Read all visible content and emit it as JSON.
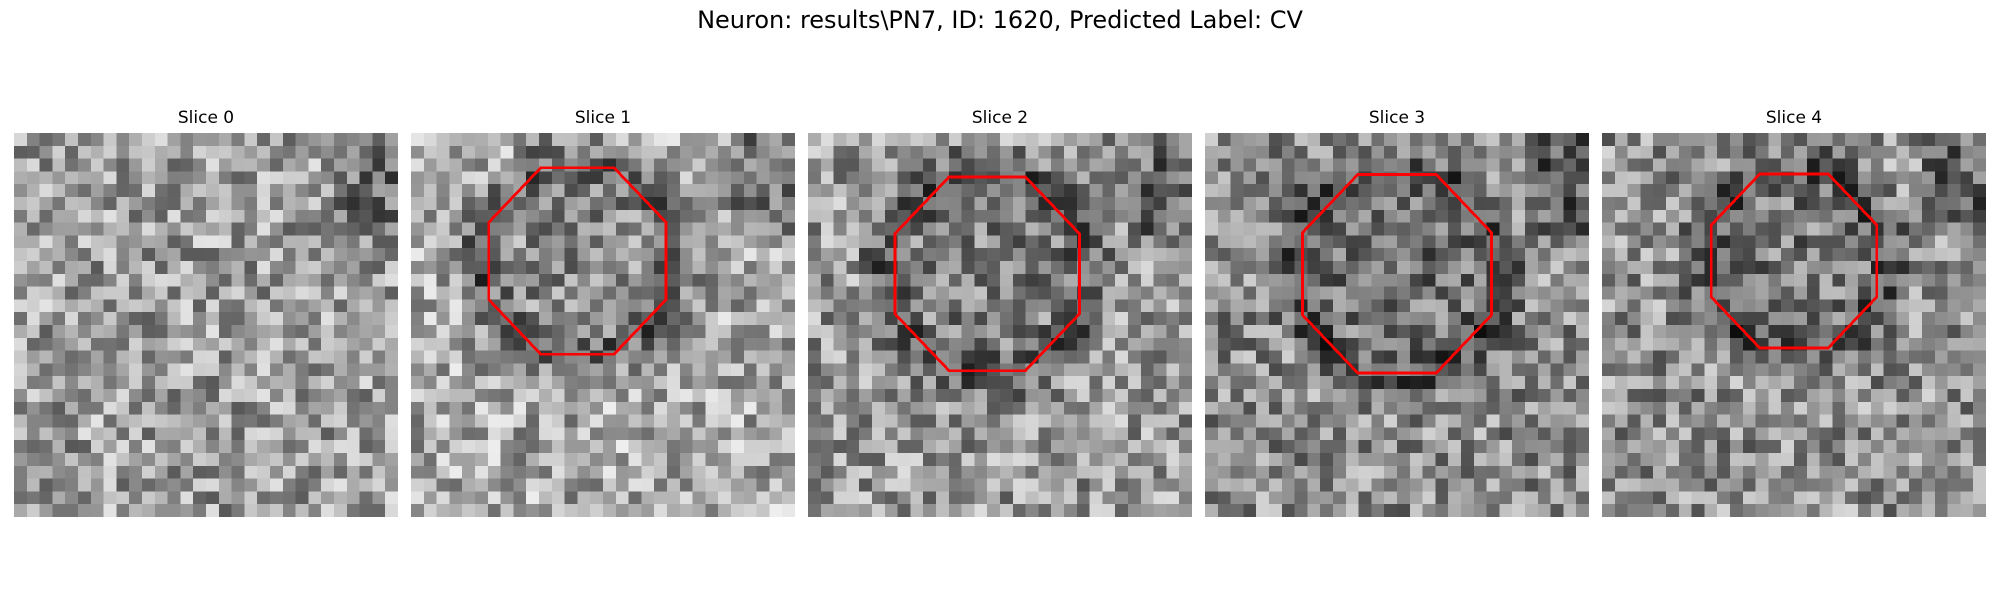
{
  "figure": {
    "title": "Neuron: results\\PN7, ID: 1620, Predicted Label: CV"
  },
  "panels": [
    {
      "title": "Slice 0",
      "has_contour": false
    },
    {
      "title": "Slice 1",
      "has_contour": true
    },
    {
      "title": "Slice 2",
      "has_contour": true
    },
    {
      "title": "Slice 3",
      "has_contour": true
    },
    {
      "title": "Slice 4",
      "has_contour": true
    }
  ],
  "colors": {
    "contour": "#ff0000",
    "background": "#ffffff"
  },
  "image": {
    "colormap": "gray",
    "grid": "30x30 pixels per slice"
  }
}
